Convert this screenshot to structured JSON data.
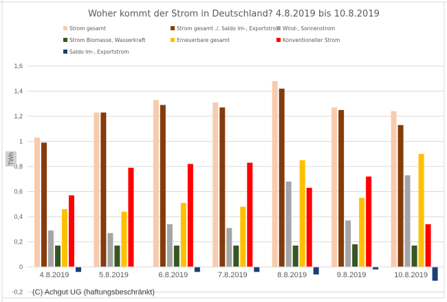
{
  "chart_data": {
    "type": "bar",
    "title": "Woher kommt der Strom in Deutschland? 4.8.2019 bis 10.8.2019",
    "xlabel": "",
    "ylabel": "TWh",
    "ylim": [
      -0.2,
      1.6
    ],
    "yticks": [
      -0.2,
      0,
      0.2,
      0.4,
      0.6,
      0.8,
      1,
      1.2,
      1.4,
      1.6
    ],
    "ytick_labels": [
      "-0,2",
      "0",
      "0,2",
      "0,4",
      "0,6",
      "0,8",
      "1",
      "1,2",
      "1,4",
      "1,6"
    ],
    "grid": true,
    "legend_position": "top",
    "categories": [
      "4.8.2019",
      "5.8.2019",
      "6.8.2019",
      "7.8.2019",
      "8.8.2019",
      "9.8.2019",
      "10.8.2019"
    ],
    "series": [
      {
        "name": "Strom gesamt",
        "color": "#F8CBAD",
        "values": [
          1.03,
          1.23,
          1.33,
          1.31,
          1.48,
          1.27,
          1.24
        ]
      },
      {
        "name": "Strom gesamt ./. Saldo Im-, Exportstrom",
        "color": "#843C0C",
        "values": [
          0.99,
          1.23,
          1.29,
          1.27,
          1.42,
          1.25,
          1.13
        ]
      },
      {
        "name": "Wind-, Sonnenstrom",
        "color": "#A5A5A5",
        "values": [
          0.29,
          0.27,
          0.34,
          0.31,
          0.68,
          0.37,
          0.73
        ]
      },
      {
        "name": "Strom Biomasse, Wasserkraft",
        "color": "#375623",
        "values": [
          0.17,
          0.17,
          0.17,
          0.17,
          0.17,
          0.18,
          0.17
        ]
      },
      {
        "name": "Erneuerbare gesamt",
        "color": "#FFC000",
        "values": [
          0.46,
          0.44,
          0.51,
          0.48,
          0.85,
          0.55,
          0.9
        ]
      },
      {
        "name": "Konventioneller Strom",
        "color": "#FF0000",
        "values": [
          0.57,
          0.79,
          0.82,
          0.83,
          0.63,
          0.72,
          0.34
        ]
      },
      {
        "name": "Saldo Im-, Exportstrom",
        "color": "#1F3F74",
        "values": [
          -0.04,
          0.0,
          -0.04,
          -0.04,
          -0.06,
          -0.02,
          -0.11
        ]
      }
    ],
    "annotations": [
      "(C) Achgut UG (haftungsbeschränkt)"
    ]
  },
  "ui": {
    "ylabel_badge": "TWh"
  }
}
